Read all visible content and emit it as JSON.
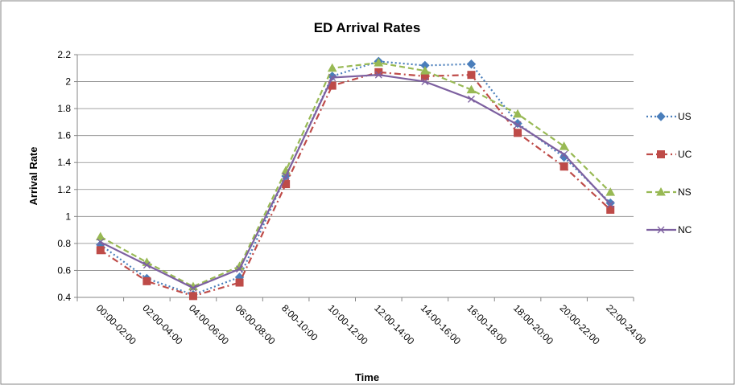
{
  "chart_data": {
    "type": "line",
    "title": "ED Arrival Rates",
    "x_label": "Time",
    "y_label": "Arrival Rate",
    "categories": [
      "00:00-02:00",
      "02:00-04:00",
      "04:00-06:00",
      "06:00-08:00",
      "8:00-10:00",
      "10:00-12:00",
      "12:00-14:00",
      "14:00-16:00",
      "16:00-18:00",
      "18:00-20:00",
      "20:00-22:00",
      "22:00-24:00"
    ],
    "series": [
      {
        "name": "US",
        "color": "#4a7ebb",
        "values": [
          0.79,
          0.54,
          0.42,
          0.55,
          1.3,
          2.04,
          2.15,
          2.12,
          2.13,
          1.69,
          1.44,
          1.1
        ]
      },
      {
        "name": "UC",
        "color": "#be4b48",
        "values": [
          0.75,
          0.52,
          0.41,
          0.51,
          1.24,
          1.97,
          2.07,
          2.04,
          2.05,
          1.62,
          1.37,
          1.05
        ]
      },
      {
        "name": "NS",
        "color": "#98b954",
        "values": [
          0.85,
          0.66,
          0.48,
          0.63,
          1.34,
          2.1,
          2.14,
          2.08,
          1.94,
          1.76,
          1.52,
          1.18
        ]
      },
      {
        "name": "NC",
        "color": "#7d60a0",
        "values": [
          0.81,
          0.64,
          0.47,
          0.61,
          1.3,
          2.03,
          2.05,
          2.0,
          1.87,
          1.68,
          1.46,
          1.09
        ]
      }
    ],
    "ylim": [
      0.4,
      2.2
    ],
    "yticks": [
      0.4,
      0.6,
      0.8,
      1,
      1.2,
      1.4,
      1.6,
      1.8,
      2,
      2.2
    ],
    "grid": true,
    "legend": "right"
  }
}
